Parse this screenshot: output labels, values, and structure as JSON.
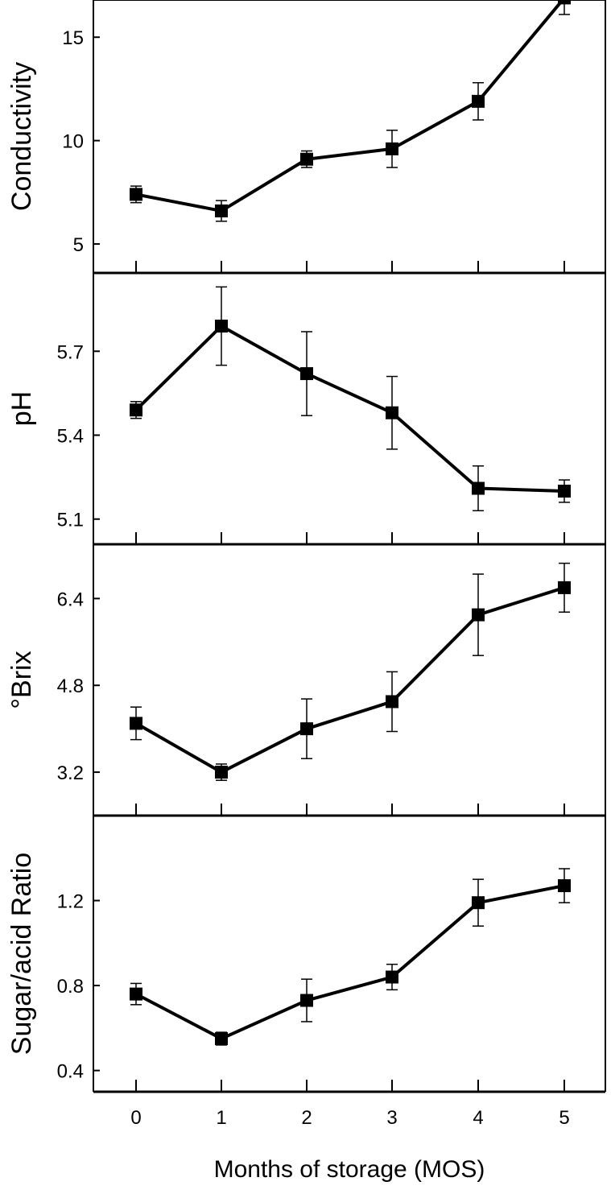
{
  "chart_data": {
    "type": "line",
    "xlabel": "Months of storage (MOS)",
    "x": [
      0,
      1,
      2,
      3,
      4,
      5
    ],
    "x_ticks": [
      "0",
      "1",
      "2",
      "3",
      "4",
      "5"
    ],
    "panels": [
      {
        "ylabel": "Conductivity",
        "ylim": [
          3.6,
          16.8
        ],
        "yticks": [
          5,
          10,
          15
        ],
        "ytick_labels": [
          "5",
          "10",
          "15"
        ],
        "values": [
          7.4,
          6.6,
          9.1,
          9.6,
          11.9,
          16.9
        ],
        "errors": [
          0.4,
          0.5,
          0.4,
          0.9,
          0.9,
          0.8
        ]
      },
      {
        "ylabel": "pH",
        "ylim": [
          5.01,
          5.98
        ],
        "yticks": [
          5.1,
          5.4,
          5.7
        ],
        "ytick_labels": [
          "5.1",
          "5.4",
          "5.7"
        ],
        "values": [
          5.49,
          5.79,
          5.62,
          5.48,
          5.21,
          5.2
        ],
        "errors": [
          0.03,
          0.14,
          0.15,
          0.13,
          0.08,
          0.04
        ]
      },
      {
        "ylabel": "°Brix",
        "ylim": [
          2.4,
          7.4
        ],
        "yticks": [
          3.2,
          4.8,
          6.4
        ],
        "ytick_labels": [
          "3.2",
          "4.8",
          "6.4"
        ],
        "values": [
          4.1,
          3.2,
          4.0,
          4.5,
          6.1,
          6.6
        ],
        "errors": [
          0.3,
          0.15,
          0.55,
          0.55,
          0.75,
          0.45
        ]
      },
      {
        "ylabel": "Sugar/acid Ratio",
        "ylim": [
          0.3,
          1.6
        ],
        "yticks": [
          0.4,
          0.8,
          1.2
        ],
        "ytick_labels": [
          "0.4",
          "0.8",
          "1.2"
        ],
        "values": [
          0.76,
          0.55,
          0.73,
          0.84,
          1.19,
          1.27
        ],
        "errors": [
          0.05,
          0.03,
          0.1,
          0.06,
          0.11,
          0.08
        ]
      }
    ]
  }
}
